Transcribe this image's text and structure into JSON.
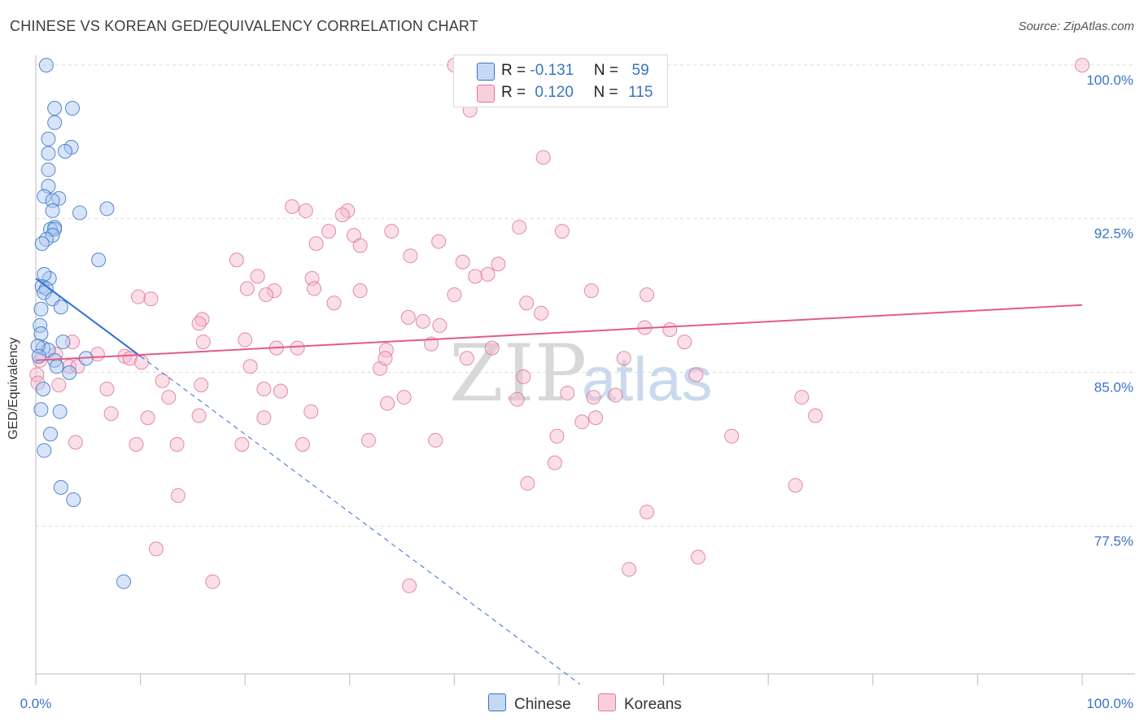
{
  "title": "CHINESE VS KOREAN GED/EQUIVALENCY CORRELATION CHART",
  "source": "Source: ZipAtlas.com",
  "watermark": {
    "zip": "ZIP",
    "atlas": "atlas"
  },
  "legend": {
    "rows": [
      {
        "r_label": "R =",
        "r_value": "-0.131",
        "n_label": "N =",
        "n_value": "59"
      },
      {
        "r_label": "R =",
        "r_value": "0.120",
        "n_label": "N =",
        "n_value": "115"
      }
    ]
  },
  "bottom_legend": {
    "chinese": "Chinese",
    "koreans": "Koreans"
  },
  "colors": {
    "chinese_fill": "#a9c6ef",
    "chinese_stroke": "#3b73c6",
    "chinese_line": "#2f6fd6",
    "korean_fill": "#f5b8cb",
    "korean_stroke": "#e07799",
    "korean_line": "#e05c8a",
    "axis_text": "#3b73c6",
    "grid": "#dddddd"
  },
  "chart_data": {
    "type": "scatter",
    "title": "CHINESE VS KOREAN GED/EQUIVALENCY CORRELATION CHART",
    "xlabel": "",
    "ylabel": "GED/Equivalency",
    "xlim": [
      0,
      100
    ],
    "ylim": [
      71.0,
      101.5
    ],
    "x_tick_labels": [
      {
        "value": 0,
        "label": "0.0%"
      },
      {
        "value": 100,
        "label": "100.0%"
      }
    ],
    "y_tick_labels": [
      {
        "value": 100.0,
        "label": "100.0%"
      },
      {
        "value": 92.5,
        "label": "92.5%"
      },
      {
        "value": 85.0,
        "label": "85.0%"
      },
      {
        "value": 77.5,
        "label": "77.5%"
      }
    ],
    "series": [
      {
        "name": "Chinese",
        "R": -0.131,
        "N": 59,
        "trend": {
          "x0": 0.0,
          "y0": 90.3,
          "x1": 10.0,
          "y1": 86.5,
          "dash_x1": 52.0,
          "dash_y1": 70.5
        },
        "points": [
          [
            1.0,
            100.7
          ],
          [
            1.8,
            98.6
          ],
          [
            3.5,
            98.6
          ],
          [
            1.8,
            97.9
          ],
          [
            1.2,
            97.1
          ],
          [
            3.4,
            96.7
          ],
          [
            2.8,
            96.5
          ],
          [
            1.2,
            96.4
          ],
          [
            1.2,
            95.6
          ],
          [
            1.2,
            94.8
          ],
          [
            0.8,
            94.3
          ],
          [
            2.2,
            94.2
          ],
          [
            1.6,
            94.1
          ],
          [
            1.6,
            93.6
          ],
          [
            6.8,
            93.7
          ],
          [
            4.2,
            93.5
          ],
          [
            1.8,
            92.8
          ],
          [
            1.4,
            92.7
          ],
          [
            1.8,
            92.7
          ],
          [
            1.6,
            92.4
          ],
          [
            1.0,
            92.2
          ],
          [
            0.6,
            92.0
          ],
          [
            1.3,
            90.3
          ],
          [
            6.0,
            91.2
          ],
          [
            0.8,
            90.5
          ],
          [
            0.6,
            89.9
          ],
          [
            1.0,
            89.8
          ],
          [
            0.8,
            89.6
          ],
          [
            1.6,
            89.3
          ],
          [
            0.5,
            88.8
          ],
          [
            2.4,
            88.9
          ],
          [
            0.4,
            88.0
          ],
          [
            0.5,
            87.6
          ],
          [
            2.6,
            87.2
          ],
          [
            0.7,
            86.9
          ],
          [
            1.2,
            86.8
          ],
          [
            1.8,
            86.3
          ],
          [
            4.8,
            86.4
          ],
          [
            2.0,
            86.0
          ],
          [
            3.2,
            85.7
          ],
          [
            0.7,
            84.9
          ],
          [
            0.5,
            83.9
          ],
          [
            2.3,
            83.8
          ],
          [
            1.4,
            82.7
          ],
          [
            0.8,
            81.9
          ],
          [
            2.4,
            80.1
          ],
          [
            3.6,
            79.5
          ],
          [
            8.4,
            75.5
          ],
          [
            0.2,
            87.0
          ],
          [
            0.3,
            86.5
          ]
        ]
      },
      {
        "name": "Koreans",
        "R": 0.12,
        "N": 115,
        "trend": {
          "x0": 0.0,
          "y0": 86.3,
          "x1": 100.0,
          "y1": 89.0
        },
        "points": [
          [
            41.5,
            98.5
          ],
          [
            100.0,
            100.7
          ],
          [
            40.0,
            100.7
          ],
          [
            48.5,
            96.2
          ],
          [
            24.5,
            93.8
          ],
          [
            25.8,
            93.6
          ],
          [
            29.8,
            93.6
          ],
          [
            29.3,
            93.4
          ],
          [
            30.4,
            92.4
          ],
          [
            46.2,
            92.8
          ],
          [
            34.0,
            92.6
          ],
          [
            28.0,
            92.6
          ],
          [
            50.3,
            92.6
          ],
          [
            26.8,
            92.0
          ],
          [
            38.5,
            92.1
          ],
          [
            31.0,
            91.9
          ],
          [
            19.2,
            91.2
          ],
          [
            35.8,
            91.4
          ],
          [
            40.8,
            91.1
          ],
          [
            44.2,
            91.0
          ],
          [
            42.0,
            90.4
          ],
          [
            43.2,
            90.5
          ],
          [
            21.2,
            90.4
          ],
          [
            26.4,
            90.3
          ],
          [
            20.2,
            89.8
          ],
          [
            22.8,
            89.7
          ],
          [
            26.6,
            89.8
          ],
          [
            31.0,
            89.7
          ],
          [
            22.0,
            89.5
          ],
          [
            9.8,
            89.4
          ],
          [
            11.0,
            89.3
          ],
          [
            28.5,
            89.1
          ],
          [
            40.0,
            89.5
          ],
          [
            46.9,
            89.1
          ],
          [
            48.3,
            88.6
          ],
          [
            35.6,
            88.4
          ],
          [
            15.9,
            88.3
          ],
          [
            37.0,
            88.2
          ],
          [
            15.6,
            88.1
          ],
          [
            38.6,
            88.0
          ],
          [
            53.1,
            89.7
          ],
          [
            58.4,
            89.5
          ],
          [
            58.2,
            87.9
          ],
          [
            60.6,
            87.8
          ],
          [
            62.0,
            87.2
          ],
          [
            20.0,
            87.3
          ],
          [
            16.0,
            87.2
          ],
          [
            37.8,
            87.1
          ],
          [
            3.5,
            87.2
          ],
          [
            23.0,
            86.9
          ],
          [
            25.0,
            86.9
          ],
          [
            33.5,
            86.8
          ],
          [
            5.9,
            86.6
          ],
          [
            8.5,
            86.5
          ],
          [
            9.0,
            86.4
          ],
          [
            41.2,
            86.4
          ],
          [
            56.2,
            86.4
          ],
          [
            3.2,
            86.0
          ],
          [
            4.0,
            86.0
          ],
          [
            20.5,
            86.0
          ],
          [
            32.9,
            85.9
          ],
          [
            46.6,
            85.5
          ],
          [
            63.1,
            85.6
          ],
          [
            12.1,
            85.3
          ],
          [
            15.8,
            85.1
          ],
          [
            2.2,
            85.1
          ],
          [
            21.8,
            84.9
          ],
          [
            6.8,
            84.9
          ],
          [
            12.7,
            84.5
          ],
          [
            35.2,
            84.5
          ],
          [
            46.0,
            84.4
          ],
          [
            53.3,
            84.5
          ],
          [
            55.4,
            84.6
          ],
          [
            73.2,
            84.5
          ],
          [
            33.6,
            84.2
          ],
          [
            26.3,
            83.8
          ],
          [
            15.6,
            83.6
          ],
          [
            21.8,
            83.5
          ],
          [
            10.7,
            83.5
          ],
          [
            53.5,
            83.5
          ],
          [
            52.2,
            83.3
          ],
          [
            7.2,
            83.7
          ],
          [
            3.8,
            82.3
          ],
          [
            9.6,
            82.2
          ],
          [
            13.5,
            82.2
          ],
          [
            19.7,
            82.2
          ],
          [
            25.5,
            82.2
          ],
          [
            31.8,
            82.4
          ],
          [
            38.2,
            82.4
          ],
          [
            49.8,
            82.6
          ],
          [
            66.5,
            82.6
          ],
          [
            13.6,
            79.7
          ],
          [
            47.0,
            80.3
          ],
          [
            49.6,
            81.3
          ],
          [
            72.6,
            80.2
          ],
          [
            58.4,
            78.9
          ],
          [
            11.5,
            77.1
          ],
          [
            63.3,
            76.7
          ],
          [
            56.7,
            76.1
          ],
          [
            16.9,
            75.5
          ],
          [
            35.7,
            75.3
          ],
          [
            0.1,
            85.6
          ],
          [
            0.2,
            85.2
          ],
          [
            10.1,
            86.2
          ],
          [
            43.6,
            86.9
          ],
          [
            33.4,
            86.4
          ],
          [
            23.4,
            84.8
          ],
          [
            74.5,
            83.6
          ],
          [
            50.8,
            84.7
          ],
          [
            0.4,
            86.3
          ],
          [
            1.9,
            86.6
          ]
        ]
      }
    ]
  }
}
